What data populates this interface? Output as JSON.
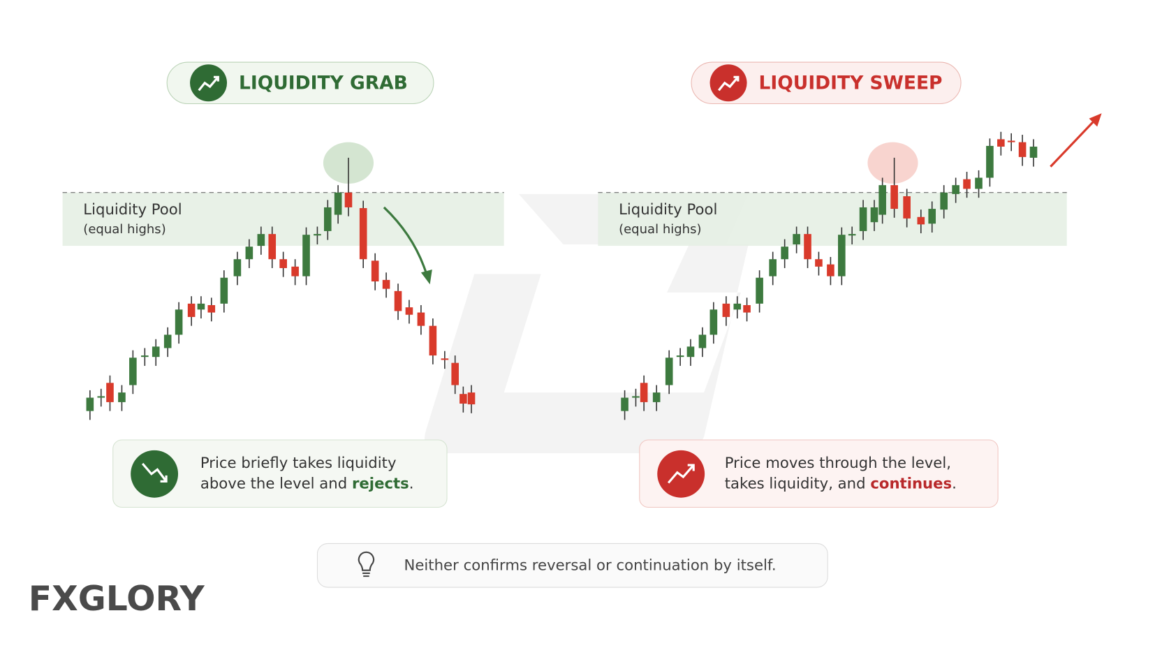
{
  "panels": [
    {
      "title": "LIQUIDITY GRAB",
      "pool_label": "Liquidity Pool",
      "pool_sub": "(equal highs)",
      "caption_line1": "Price briefly takes liquidity",
      "caption_line2": "above the level and",
      "caption_emphasis": "rejects",
      "caption_end": "."
    },
    {
      "title": "LIQUIDITY SWEEP",
      "pool_label": "Liquidity Pool",
      "pool_sub": "(equal highs)",
      "caption_line1": "Price moves through the level,",
      "caption_line2": "takes liquidity, and",
      "caption_emphasis": "continues",
      "caption_end": "."
    }
  ],
  "note": "Neither confirms reversal or continuation by itself.",
  "logo": "FXGLORY"
}
